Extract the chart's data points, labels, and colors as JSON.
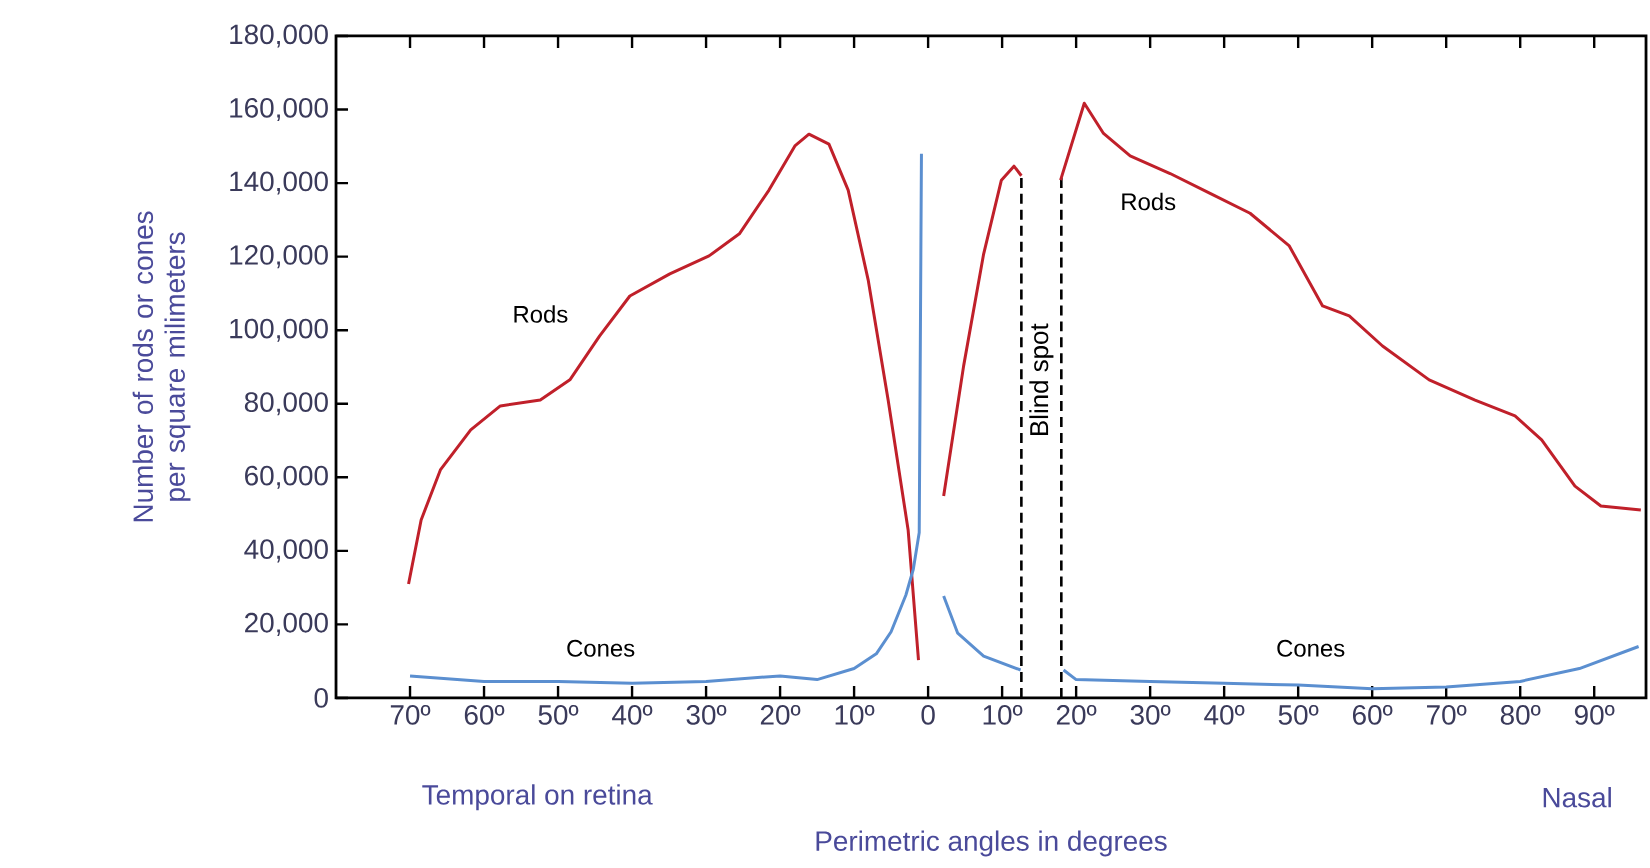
{
  "chart_data": {
    "type": "line",
    "xlabel": "Perimetric angles in degrees",
    "ylabel": "Number of rods or cones per square milimeters",
    "xlim": [
      -80,
      97
    ],
    "ylim": [
      0,
      180000
    ],
    "xticks": [
      {
        "value": -70,
        "label": "70º"
      },
      {
        "value": -60,
        "label": "60º"
      },
      {
        "value": -50,
        "label": "50º"
      },
      {
        "value": -40,
        "label": "40º"
      },
      {
        "value": -30,
        "label": "30º"
      },
      {
        "value": -20,
        "label": "20º"
      },
      {
        "value": -10,
        "label": "10º"
      },
      0,
      {
        "value": 10,
        "label": "10º"
      },
      {
        "value": 20,
        "label": "20º"
      },
      {
        "value": 30,
        "label": "30º"
      },
      {
        "value": 40,
        "label": "40º"
      },
      {
        "value": 50,
        "label": "50º"
      },
      {
        "value": 60,
        "label": "60º"
      },
      {
        "value": 70,
        "label": "70º"
      },
      {
        "value": 80,
        "label": "80º"
      },
      {
        "value": 90,
        "label": "90º"
      }
    ],
    "yticks": [
      0,
      {
        "value": 20000,
        "label": "20,000"
      },
      {
        "value": 40000,
        "label": "40,000"
      },
      {
        "value": 60000,
        "label": "60,000"
      },
      {
        "value": 80000,
        "label": "80,000"
      },
      {
        "value": 100000,
        "label": "100,000"
      },
      {
        "value": 120000,
        "label": "120,000"
      },
      {
        "value": 140000,
        "label": "140,000"
      },
      {
        "value": 160000,
        "label": "160,000"
      },
      {
        "value": 180000,
        "label": "180,000"
      }
    ],
    "grid": false,
    "legend": false,
    "marker": "none",
    "line_style": "solid",
    "series": [
      {
        "name": "Rods",
        "color": "#c0202a",
        "x": [
          -70.2,
          -68.5,
          -65.9,
          -61.8,
          -57.8,
          -52.4,
          -48.4,
          -44.4,
          -40.3,
          -34.9,
          -29.6,
          -25.5,
          -21.5,
          -18,
          -16.1,
          -13.4,
          -10.8,
          -8.1,
          -5.4,
          -2.7,
          -1.3
        ],
        "values": [
          31000,
          48400,
          62000,
          72900,
          79400,
          81000,
          86500,
          98400,
          109300,
          115300,
          120200,
          126200,
          138100,
          150100,
          153300,
          150600,
          138100,
          113700,
          81000,
          45700,
          10300
        ]
      },
      {
        "name": "Rods",
        "color": "#c0202a",
        "x": [
          2.1,
          4.8,
          7.5,
          9.9,
          11.6,
          12.6,
          15,
          17.9,
          21.1,
          23.7,
          27.3,
          32.7,
          38.1,
          43.5,
          48.8,
          53.3,
          56.9,
          61.4,
          67.7,
          73.9,
          79.3,
          82.9,
          87.4,
          90.9,
          96.3
        ],
        "values": [
          54900,
          90300,
          120700,
          140800,
          144600,
          142000,
          null,
          140800,
          161700,
          153500,
          147400,
          142600,
          137200,
          131800,
          122900,
          106600,
          103900,
          95700,
          86500,
          81000,
          76700,
          70200,
          57600,
          52200,
          51100
        ]
      },
      {
        "name": "Cones",
        "color": "#5b8fd0",
        "x": [
          -70,
          -60,
          -50,
          -40,
          -30,
          -20,
          -15,
          -10,
          -7,
          -5,
          -3,
          -2,
          -1.2,
          -0.9
        ],
        "values": [
          6000,
          4500,
          4500,
          4000,
          4500,
          6000,
          5000,
          8000,
          12000,
          18000,
          28000,
          35000,
          45000,
          148000
        ]
      },
      {
        "name": "Cones",
        "color": "#5b8fd0",
        "x": [
          2.1,
          4,
          7.5,
          12.5,
          15,
          18.3,
          20,
          30,
          40,
          50,
          60,
          70,
          80,
          88,
          96
        ],
        "values": [
          27700,
          17600,
          11400,
          7600,
          null,
          7600,
          5000,
          4500,
          4000,
          3500,
          2500,
          3000,
          4500,
          8000,
          14000
        ]
      }
    ],
    "ref_lines": [
      {
        "axis": "x",
        "value": 12.6,
        "label": "Blind spot",
        "color": "#000000",
        "line_style": "dashed"
      },
      {
        "axis": "x",
        "value": 18,
        "color": "#000000",
        "line_style": "dashed"
      }
    ],
    "annotations": [
      "Temporal on retina",
      "Nasal"
    ]
  }
}
